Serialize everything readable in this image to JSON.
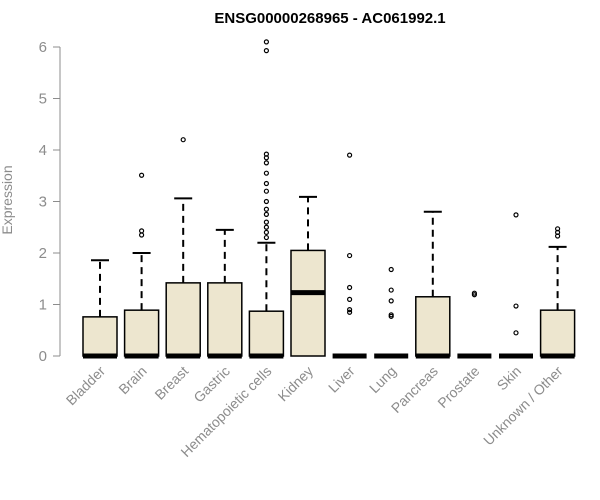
{
  "chart_data": {
    "type": "box",
    "title": "ENSG00000268965 - AC061992.1",
    "ylabel": "Expression",
    "xlabel": "",
    "ylim": [
      0,
      6.1
    ],
    "yticks": [
      0,
      1,
      2,
      3,
      4,
      5,
      6
    ],
    "box_fill": "#ede6cf",
    "categories": [
      "Bladder",
      "Brain",
      "Breast",
      "Gastric",
      "Hematopoietic cells",
      "Kidney",
      "Liver",
      "Lung",
      "Pancreas",
      "Prostate",
      "Skin",
      "Unknown / Other"
    ],
    "boxes": [
      {
        "q1": 0,
        "median": 0,
        "q3": 0.76,
        "whisker_low": 0,
        "whisker_high": 1.86,
        "outliers": []
      },
      {
        "q1": 0,
        "median": 0,
        "q3": 0.89,
        "whisker_low": 0,
        "whisker_high": 2.0,
        "outliers": [
          2.35,
          2.43,
          3.51
        ]
      },
      {
        "q1": 0,
        "median": 0,
        "q3": 1.42,
        "whisker_low": 0,
        "whisker_high": 3.06,
        "outliers": [
          4.2
        ]
      },
      {
        "q1": 0,
        "median": 0,
        "q3": 1.42,
        "whisker_low": 0,
        "whisker_high": 2.45,
        "outliers": []
      },
      {
        "q1": 0,
        "median": 0,
        "q3": 0.87,
        "whisker_low": 0,
        "whisker_high": 2.2,
        "outliers": [
          2.3,
          2.4,
          2.5,
          2.6,
          2.75,
          2.85,
          3.0,
          3.2,
          3.35,
          3.55,
          3.75,
          3.85,
          3.92,
          5.93,
          6.1
        ]
      },
      {
        "q1": 0,
        "median": 1.23,
        "q3": 2.05,
        "whisker_low": 0,
        "whisker_high": 3.09,
        "outliers": []
      },
      {
        "q1": 0,
        "median": 0,
        "q3": 0,
        "whisker_low": 0,
        "whisker_high": 0,
        "outliers": [
          0.85,
          0.9,
          1.1,
          1.33,
          1.95,
          3.9
        ]
      },
      {
        "q1": 0,
        "median": 0,
        "q3": 0,
        "whisker_low": 0,
        "whisker_high": 0,
        "outliers": [
          0.77,
          0.8,
          1.07,
          1.28,
          1.68
        ]
      },
      {
        "q1": 0,
        "median": 0,
        "q3": 1.15,
        "whisker_low": 0,
        "whisker_high": 2.8,
        "outliers": []
      },
      {
        "q1": 0,
        "median": 0,
        "q3": 0,
        "whisker_low": 0,
        "whisker_high": 0,
        "outliers": [
          1.19,
          1.22
        ]
      },
      {
        "q1": 0,
        "median": 0,
        "q3": 0,
        "whisker_low": 0,
        "whisker_high": 0,
        "outliers": [
          0.45,
          0.97,
          2.74
        ]
      },
      {
        "q1": 0,
        "median": 0,
        "q3": 0.89,
        "whisker_low": 0,
        "whisker_high": 2.12,
        "outliers": [
          2.33,
          2.4,
          2.47
        ]
      }
    ]
  }
}
